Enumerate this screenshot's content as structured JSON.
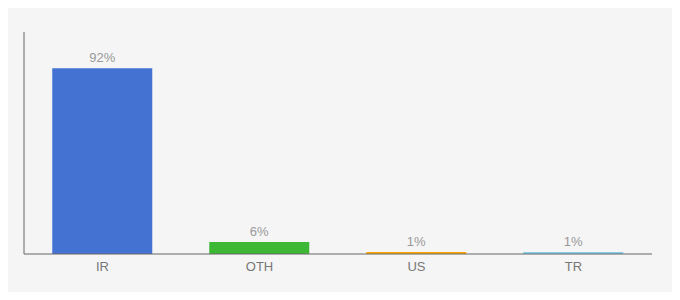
{
  "chart_data": {
    "type": "bar",
    "categories": [
      "IR",
      "OTH",
      "US",
      "TR"
    ],
    "values": [
      92,
      6,
      1,
      1
    ],
    "value_labels": [
      "92%",
      "6%",
      "1%",
      "1%"
    ],
    "colors": [
      "#4472D3",
      "#3CB834",
      "#FFA500",
      "#87CEEB"
    ],
    "ylim": [
      0,
      110
    ],
    "data_labels": true,
    "tick_labels": "x",
    "grid": false
  }
}
